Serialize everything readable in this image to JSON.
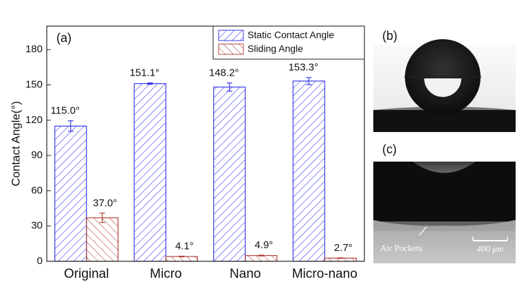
{
  "chart_data": {
    "type": "bar",
    "y_label": "Contact Angle(°)",
    "annotations": [
      "(a)"
    ],
    "categories": [
      "Original",
      "Micro",
      "Nano",
      "Micro-nano"
    ],
    "series": [
      {
        "name": "Static Contact Angle",
        "color": "#3a3aee",
        "values": [
          115.0,
          151.1,
          148.2,
          153.3
        ],
        "errors": [
          4.5,
          0.7,
          3.5,
          3.0
        ],
        "value_labels": [
          "115.0°",
          "151.1°",
          "148.2°",
          "153.3°"
        ]
      },
      {
        "name": "Sliding Angle",
        "color": "#b4463e",
        "values": [
          37.0,
          4.1,
          4.9,
          2.7
        ],
        "errors": [
          4.0,
          0.3,
          0.4,
          0.3
        ],
        "value_labels": [
          "37.0°",
          "4.1°",
          "4.9°",
          "2.7°"
        ]
      }
    ],
    "ylim": [
      0,
      200
    ],
    "yticks": [
      0,
      30,
      60,
      90,
      120,
      150,
      180
    ],
    "legend": "upper right"
  },
  "panels": {
    "b": {
      "label": "(b)"
    },
    "c": {
      "label": "(c)",
      "annotation": "Air Pockets",
      "scale_bar": "400 μm"
    }
  }
}
